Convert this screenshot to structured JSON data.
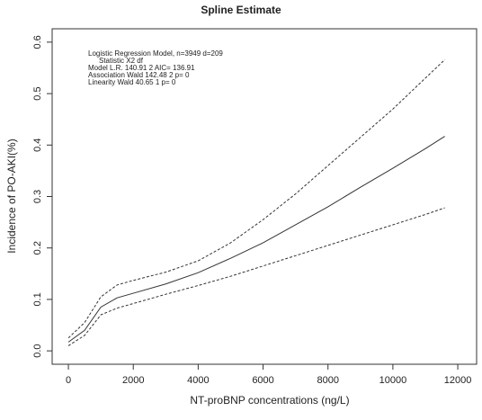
{
  "chart_data": {
    "type": "line",
    "title": "Spline Estimate",
    "x_label": "NT-proBNP concentrations (ng/L)",
    "y_label": "Incidence of PO-AKI(%)",
    "annotations": [
      "Logistic Regression Model,  n=3949 d=209",
      "Statistic   X2  df",
      "Model     L.R.  140.91 2  AIC= 136.91",
      "Association  Wald  142.48 2  p=  0",
      "Linearity   Wald  40.65 1  p=  0"
    ],
    "x": [
      0,
      500,
      1000,
      1500,
      2000,
      3000,
      4000,
      5000,
      6000,
      7000,
      8000,
      9000,
      10000,
      11000,
      11600
    ],
    "series": [
      {
        "color": "#333333",
        "dashed": false,
        "values": [
          0.017,
          0.04,
          0.085,
          0.103,
          0.112,
          0.13,
          0.152,
          0.18,
          0.21,
          0.245,
          0.28,
          0.318,
          0.355,
          0.393,
          0.417
        ]
      },
      {
        "color": "#333333",
        "dashed": true,
        "values": [
          0.025,
          0.055,
          0.105,
          0.128,
          0.137,
          0.153,
          0.175,
          0.21,
          0.255,
          0.305,
          0.36,
          0.415,
          0.47,
          0.53,
          0.566
        ]
      },
      {
        "color": "#333333",
        "dashed": true,
        "values": [
          0.01,
          0.03,
          0.07,
          0.083,
          0.092,
          0.11,
          0.127,
          0.145,
          0.165,
          0.185,
          0.205,
          0.225,
          0.245,
          0.265,
          0.278
        ]
      }
    ],
    "xlim": [
      -500,
      12580
    ],
    "ylim": [
      -0.026,
      0.626
    ],
    "xticks": [
      0,
      2000,
      4000,
      6000,
      8000,
      10000,
      12000
    ],
    "yticks": [
      {
        "value": 0,
        "label": "0.0"
      },
      0.1,
      0.2,
      0.3,
      0.4,
      0.5,
      0.6
    ]
  }
}
